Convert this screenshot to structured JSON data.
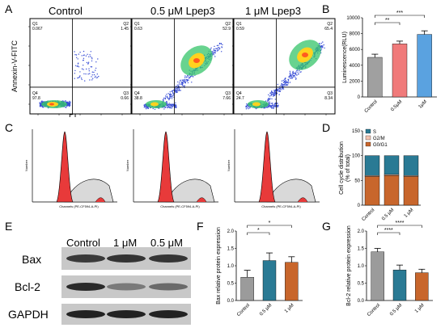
{
  "panel_letters": {
    "A": "A",
    "B": "B",
    "C": "C",
    "D": "D",
    "E": "E",
    "F": "F",
    "G": "G"
  },
  "panelA": {
    "titles": [
      "Control",
      "0.5 μM Lpep3",
      "1 μM Lpep3"
    ],
    "ylabel": "Annexin-V-FITC",
    "xlabel": "PI",
    "quadrants": [
      {
        "Q1": "Q1",
        "Q1v": "0.067",
        "Q2": "Q2",
        "Q2v": "1.45",
        "Q3": "Q3",
        "Q3v": "0.66",
        "Q4": "Q4",
        "Q4v": "97.8"
      },
      {
        "Q1": "Q1",
        "Q1v": "0.63",
        "Q2": "Q2",
        "Q2v": "52.9",
        "Q3": "Q3",
        "Q3v": "7.66",
        "Q4": "Q4",
        "Q4v": "38.8"
      },
      {
        "Q1": "Q1",
        "Q1v": "0.59",
        "Q2": "Q2",
        "Q2v": "65.4",
        "Q3": "Q3",
        "Q3v": "8.34",
        "Q4": "Q4",
        "Q4v": "24.7"
      }
    ],
    "density_colors": {
      "low": "#3a4fd6",
      "mid": "#35c46a",
      "high": "#ffd21f",
      "peak": "#ff5a1f"
    }
  },
  "panelC": {
    "ylabel": "Number",
    "xlabel": "Channels (PE-CF594-A-PI)",
    "fill": "#e83a3a"
  },
  "panelE": {
    "lanes": [
      "Control",
      "1 μM",
      "0.5 μM"
    ],
    "proteins": [
      "Bax",
      "Bcl-2",
      "GAPDH"
    ]
  },
  "chart_data": [
    {
      "id": "B",
      "type": "bar",
      "categories": [
        "Control",
        "0.5μM",
        "1μM"
      ],
      "values": [
        5000,
        6700,
        7900
      ],
      "errors": [
        400,
        350,
        450
      ],
      "colors": [
        "#a0a0a0",
        "#f07a7a",
        "#5aa2e0"
      ],
      "ylabel": "Luminescence(RLU)",
      "ylim": [
        0,
        10000
      ],
      "yticks": [
        "0",
        "2000",
        "4000",
        "6000",
        "8000",
        "10000"
      ],
      "significance": [
        {
          "label": "**",
          "from": 0,
          "to": 1
        },
        {
          "label": "***",
          "from": 0,
          "to": 2
        }
      ]
    },
    {
      "id": "D",
      "type": "bar",
      "stacked": true,
      "categories": [
        "Control",
        "0.5 μM",
        "1 μM"
      ],
      "series": [
        {
          "name": "G0/G1",
          "values": [
            58,
            60,
            58
          ],
          "color": "#c8662c"
        },
        {
          "name": "G2/M",
          "values": [
            2,
            2,
            2
          ],
          "color": "#f4c4b0"
        },
        {
          "name": "S",
          "values": [
            40,
            38,
            40
          ],
          "color": "#2a7a94"
        }
      ],
      "legend": [
        "S",
        "G2/M",
        "G0/G1"
      ],
      "ylabel": "Cell cycle distribution\n(% of total)",
      "ylim": [
        0,
        150
      ],
      "yticks": [
        "0",
        "50",
        "100",
        "150"
      ]
    },
    {
      "id": "F",
      "type": "bar",
      "categories": [
        "Control",
        "0.5 μM",
        "1 μM"
      ],
      "values": [
        0.67,
        1.15,
        1.1
      ],
      "errors": [
        0.2,
        0.22,
        0.16
      ],
      "colors": [
        "#9b9b9b",
        "#2a7a94",
        "#c8662c"
      ],
      "ylabel": "Bax relative protein expression",
      "ylim": [
        0,
        2.0
      ],
      "yticks": [
        "0.0",
        "0.5",
        "1.0",
        "1.5",
        "2.0"
      ],
      "significance": [
        {
          "label": "*",
          "from": 0,
          "to": 1
        },
        {
          "label": "*",
          "from": 0,
          "to": 2
        }
      ]
    },
    {
      "id": "G",
      "type": "bar",
      "categories": [
        "Control",
        "0.5 μM",
        "1 μM"
      ],
      "values": [
        1.4,
        0.88,
        0.8
      ],
      "errors": [
        0.1,
        0.14,
        0.1
      ],
      "colors": [
        "#9b9b9b",
        "#2a7a94",
        "#c8662c"
      ],
      "ylabel": "Bcl-2 relative protein expression",
      "ylim": [
        0,
        2.0
      ],
      "yticks": [
        "0.0",
        "0.5",
        "1.0",
        "1.5",
        "2.0"
      ],
      "significance": [
        {
          "label": "****",
          "from": 0,
          "to": 1
        },
        {
          "label": "****",
          "from": 0,
          "to": 2
        }
      ]
    }
  ]
}
